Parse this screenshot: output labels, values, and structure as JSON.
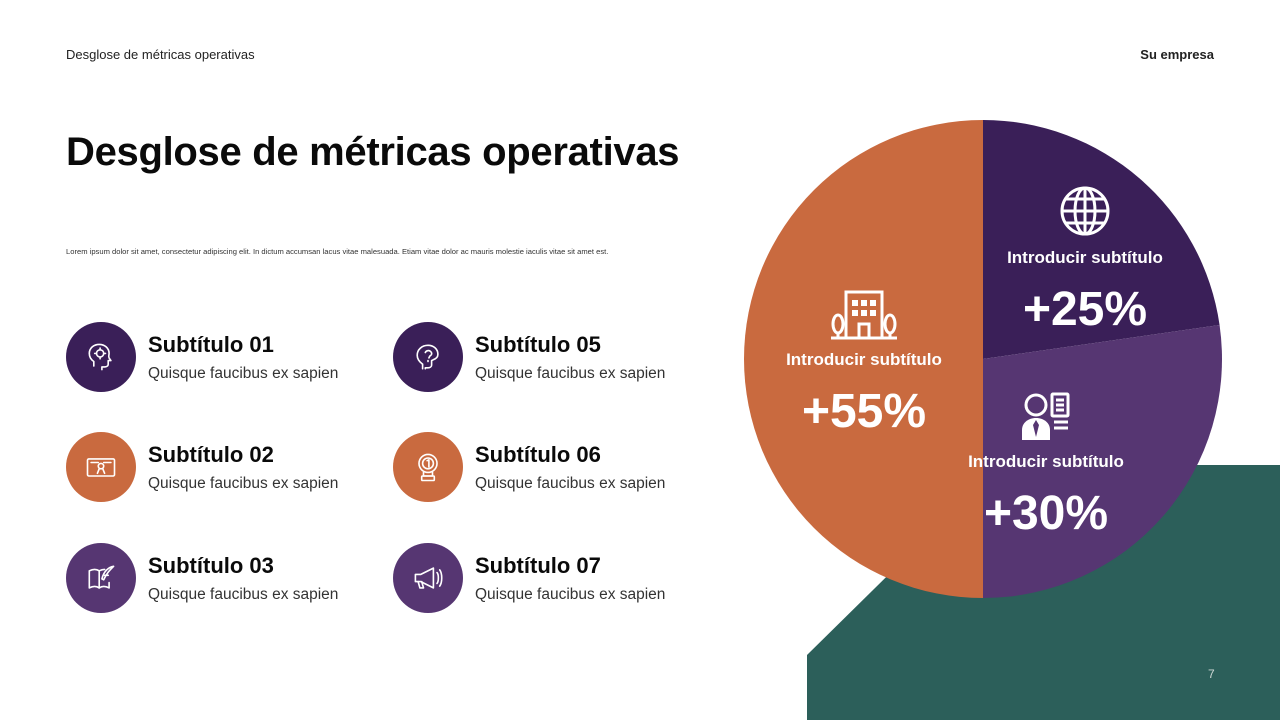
{
  "header": {
    "left": "Desglose de métricas operativas",
    "right": "Su empresa"
  },
  "title": "Desglose de métricas operativas",
  "body": "Lorem ipsum dolor sit amet, consectetur adipiscing elit. In dictum accumsan lacus vitae malesuada. Etiam vitae dolor ac mauris molestie iaculis vitae sit amet est.",
  "items": [
    {
      "title": "Subtítulo 01",
      "text": "Quisque faucibus ex sapien",
      "icon": "head-gear-icon",
      "color": "#3a1f58"
    },
    {
      "title": "Subtítulo 02",
      "text": "Quisque faucibus ex sapien",
      "icon": "certificate-icon",
      "color": "#c96a3f"
    },
    {
      "title": "Subtítulo 03",
      "text": "Quisque faucibus ex sapien",
      "icon": "book-quill-icon",
      "color": "#563672"
    },
    {
      "title": "Subtítulo 05",
      "text": "Quisque faucibus ex sapien",
      "icon": "idea-head-icon",
      "color": "#3a1f58"
    },
    {
      "title": "Subtítulo 06",
      "text": "Quisque faucibus ex sapien",
      "icon": "medal-trophy-icon",
      "color": "#c96a3f"
    },
    {
      "title": "Subtítulo 07",
      "text": "Quisque faucibus ex sapien",
      "icon": "megaphone-icon",
      "color": "#563672"
    }
  ],
  "chart_data": {
    "type": "pie",
    "slices": [
      {
        "label": "Introducir subtítulo",
        "value": 25,
        "display": "+25%",
        "color": "#3a1f58",
        "icon": "globe-icon"
      },
      {
        "label": "Introducir subtítulo",
        "value": 30,
        "display": "+30%",
        "color": "#563672",
        "icon": "profile-card-icon"
      },
      {
        "label": "Introducir subtítulo",
        "value": 55,
        "display": "+55%",
        "color": "#c96a3f",
        "icon": "building-icon"
      }
    ]
  },
  "colors": {
    "green": "#2c5f5a",
    "purple_dark": "#3a1f58",
    "purple": "#563672",
    "orange": "#c96a3f"
  },
  "page_number": "7"
}
